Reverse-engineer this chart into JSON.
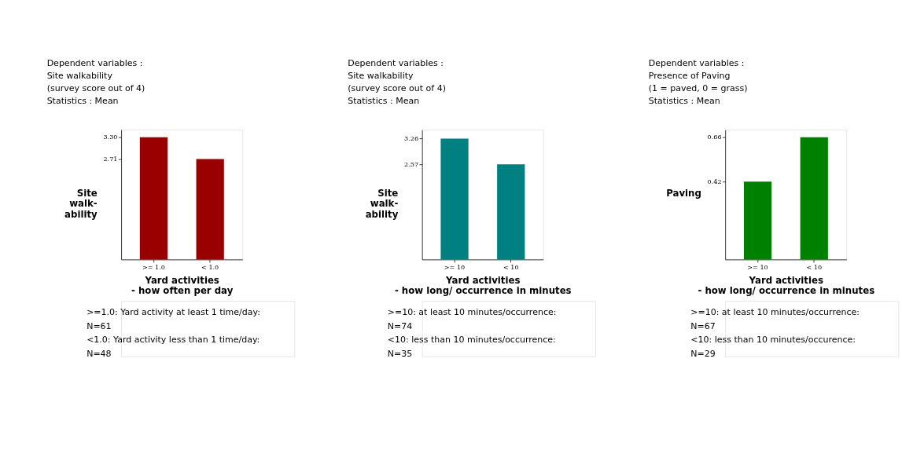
{
  "chart_data": [
    {
      "type": "bar",
      "title": "Dependent variables :\nSite walkability\n(survey score out of 4)\n\nStatistics : Mean",
      "ylabel": "Site\nwalk-\nability",
      "xlabel": "Yard activities\n- how often per day",
      "categories": [
        ">= 1.0",
        "< 1.0"
      ],
      "values": [
        3.3,
        2.71
      ],
      "color": "#990000",
      "ylim": [
        0,
        3.5
      ],
      "yticks": [
        {
          "value": 2.71,
          "label": "2.71"
        },
        {
          "value": 3.3,
          "label": "3.30"
        }
      ],
      "grid": false,
      "legend": false,
      "annotations": [
        ">=1.0: Yard activity at least 1 time/day:\nN=61",
        "<1.0: Yard activity less than 1 time/day:\nN=48"
      ]
    },
    {
      "type": "bar",
      "title": "Dependent variables :\nSite walkability\n(survey score out of 4)\n\nStatistics : Mean",
      "ylabel": "Site\nwalk-\nability",
      "xlabel": "Yard activities\n- how long/ occurrence in minutes",
      "categories": [
        ">= 10",
        "< 10"
      ],
      "values": [
        3.26,
        2.57
      ],
      "color": "#008080",
      "ylim": [
        0,
        3.5
      ],
      "yticks": [
        {
          "value": 2.57,
          "label": "2.57"
        },
        {
          "value": 3.26,
          "label": "3.26"
        }
      ],
      "grid": false,
      "legend": false,
      "annotations": [
        ">=10: at least 10 minutes/occurrence:\nN=74",
        "<10: less than 10 minutes/occurrence:\nN=35"
      ]
    },
    {
      "type": "bar",
      "title": "Dependent variables :\nPresence of Paving\n(1 = paved, 0 = grass)\n\nStatistics : Mean",
      "ylabel": "Paving",
      "xlabel": "Yard activities\n- how long/ occurrence in minutes",
      "categories": [
        ">= 10",
        "< 10"
      ],
      "values": [
        0.42,
        0.66
      ],
      "color": "#008000",
      "ylim": [
        0,
        0.7
      ],
      "yticks": [
        {
          "value": 0.42,
          "label": "0.42"
        },
        {
          "value": 0.66,
          "label": "0.66"
        }
      ],
      "grid": false,
      "legend": false,
      "annotations": [
        ">=10: at least 10 minutes/occurrence:\nN=67",
        "<10: less than 10 minutes/occurence:\nN=29"
      ]
    }
  ]
}
